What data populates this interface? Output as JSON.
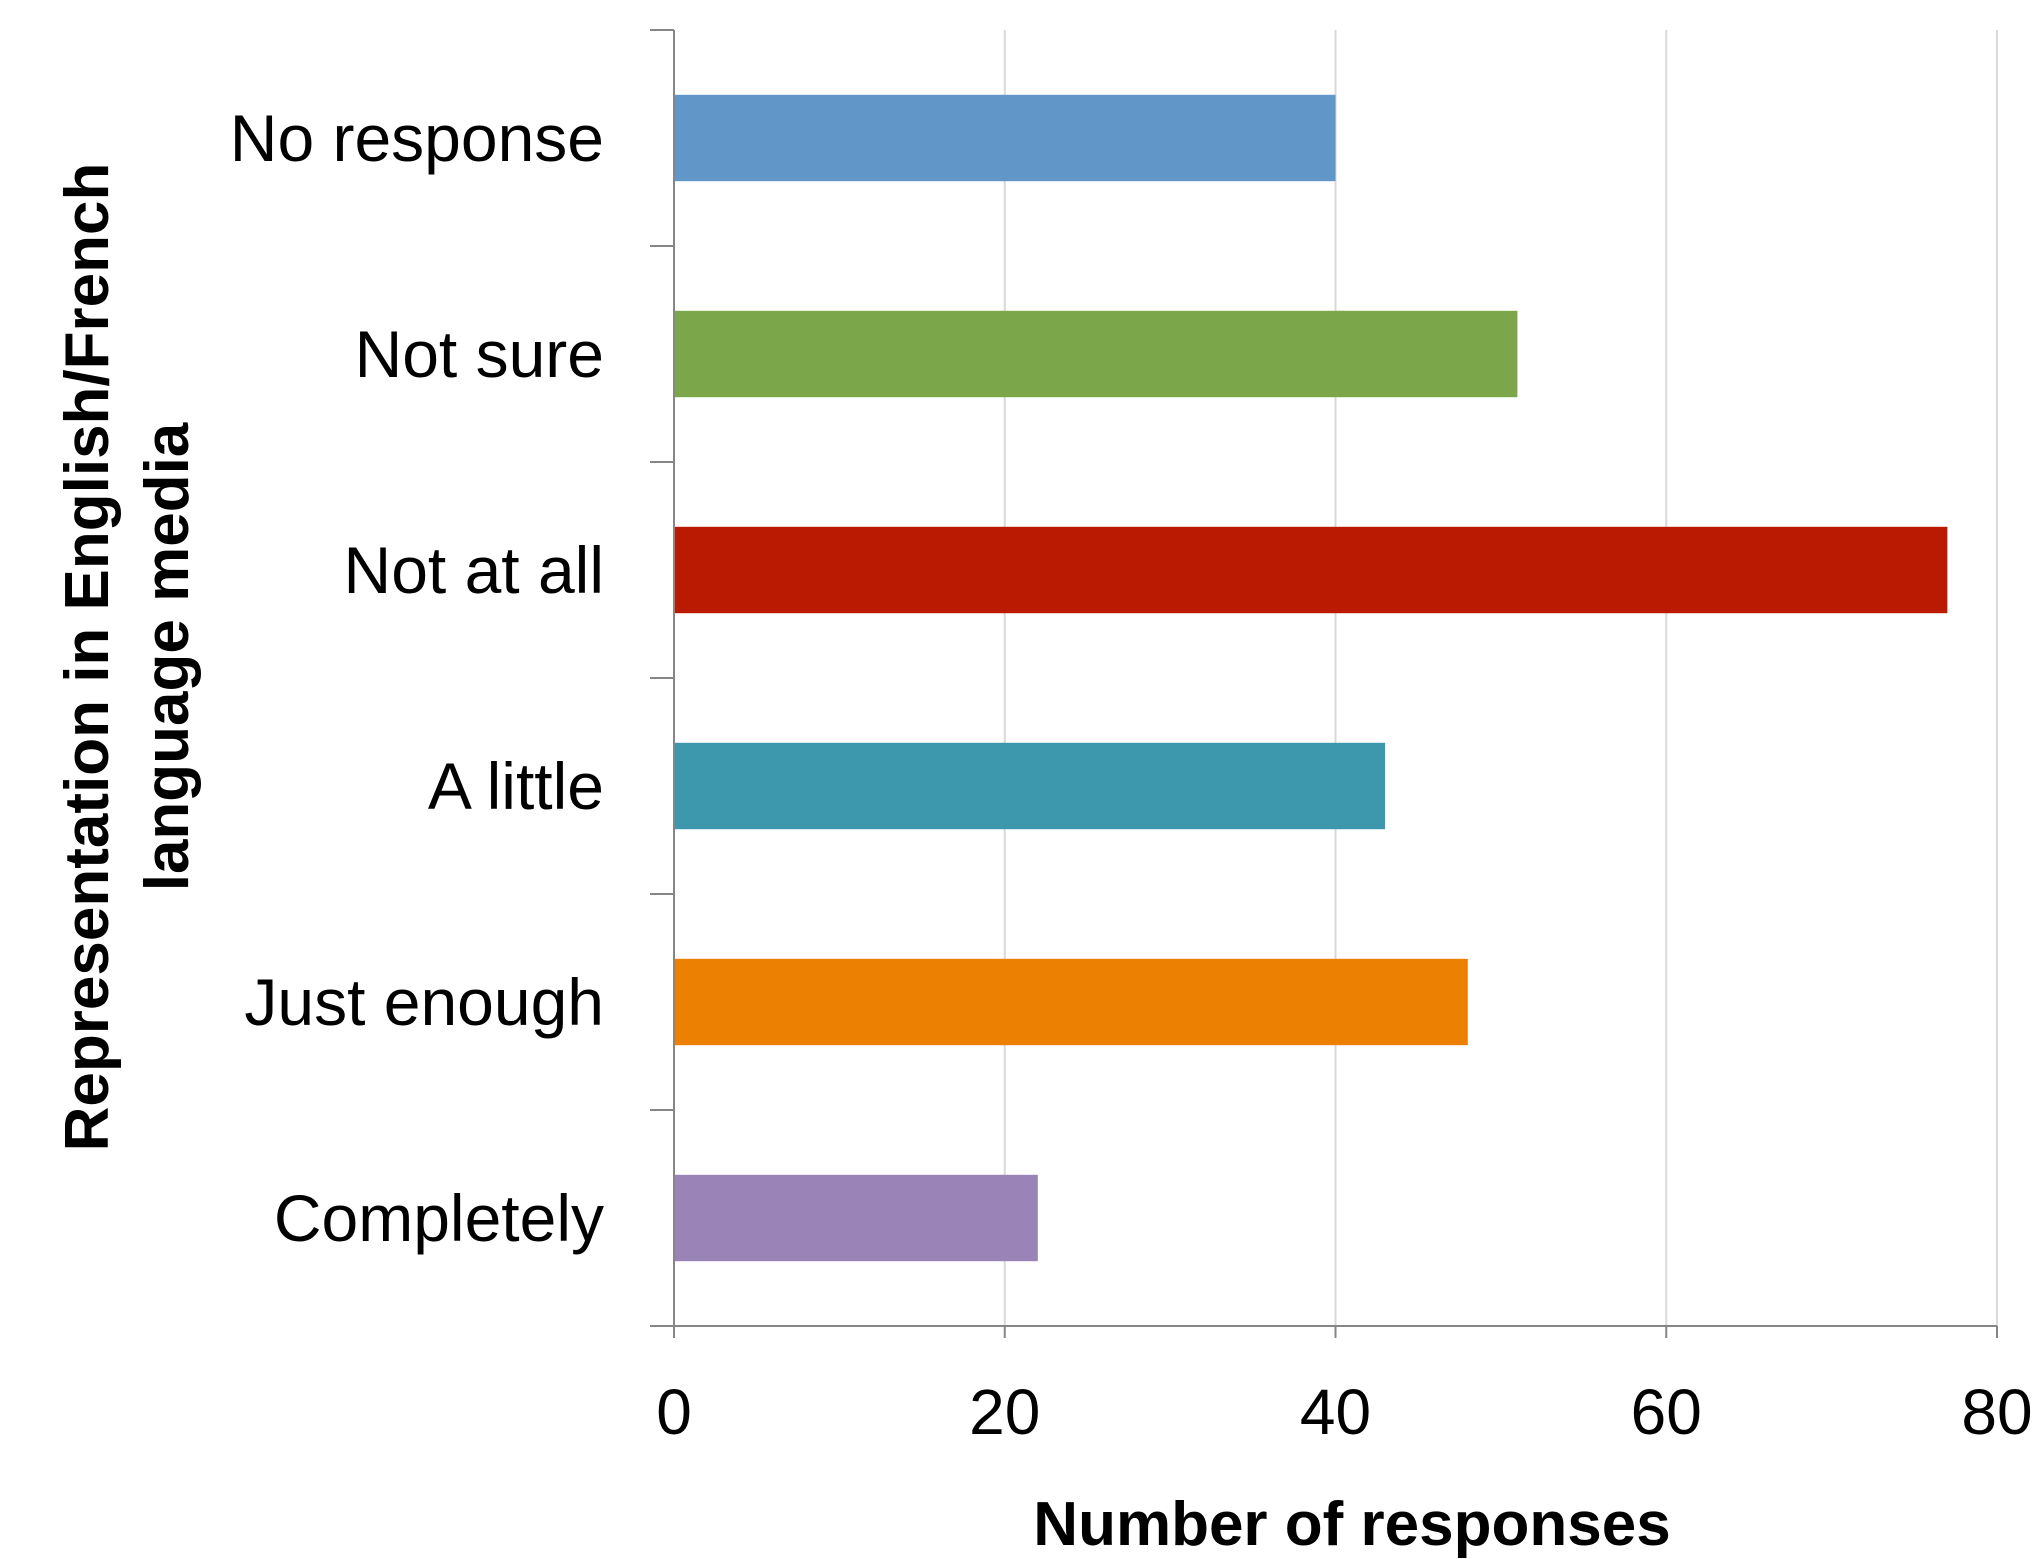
{
  "chart_data": {
    "type": "bar",
    "orientation": "horizontal",
    "categories": [
      "No response",
      "Not sure",
      "Not at all",
      "A little",
      "Just enough",
      "Completely"
    ],
    "values": [
      40,
      51,
      77,
      43,
      48,
      22
    ],
    "colors": [
      "#6096c8",
      "#7ba64a",
      "#bb1a02",
      "#3e98ad",
      "#ec8003",
      "#9a84b7"
    ],
    "xlabel": "Number of responses",
    "ylabel_lines": [
      "Representation in English/French",
      "language media"
    ],
    "xlim": [
      0,
      80
    ],
    "xticks": [
      "0",
      "20",
      "40",
      "60",
      "80"
    ],
    "grid": "vertical",
    "legend": "none"
  }
}
